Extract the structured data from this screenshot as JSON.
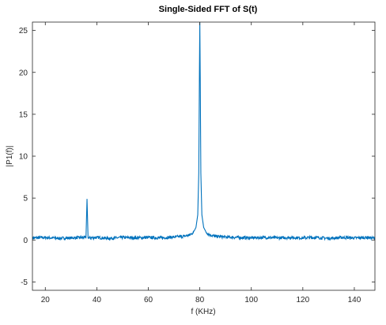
{
  "chart_data": {
    "type": "line",
    "title": "Single-Sided FFT of S(t)",
    "xlabel": "f (KHz)",
    "ylabel": "|P1(f)|",
    "xlim": [
      15,
      148
    ],
    "ylim": [
      -6,
      26
    ],
    "xticks": [
      20,
      40,
      60,
      80,
      100,
      120,
      140
    ],
    "yticks": [
      -5,
      0,
      5,
      10,
      15,
      20,
      25
    ],
    "grid": false,
    "line_color": "#0072BD",
    "noise_floor": 0.25,
    "series": [
      {
        "name": "",
        "points": [
          [
            15,
            0.25
          ],
          [
            20,
            0.3
          ],
          [
            25,
            0.2
          ],
          [
            30,
            0.25
          ],
          [
            35,
            0.3
          ],
          [
            35.8,
            0.3
          ],
          [
            36.2,
            4.9
          ],
          [
            36.6,
            0.3
          ],
          [
            37,
            0.25
          ],
          [
            40,
            0.3
          ],
          [
            45,
            0.2
          ],
          [
            50,
            0.3
          ],
          [
            55,
            0.25
          ],
          [
            60,
            0.3
          ],
          [
            65,
            0.25
          ],
          [
            70,
            0.35
          ],
          [
            74,
            0.45
          ],
          [
            76,
            0.6
          ],
          [
            77.5,
            0.9
          ],
          [
            78.5,
            1.5
          ],
          [
            79.2,
            3.0
          ],
          [
            79.6,
            8.0
          ],
          [
            79.85,
            20.0
          ],
          [
            80.0,
            26.0
          ],
          [
            80.15,
            20.0
          ],
          [
            80.4,
            8.0
          ],
          [
            80.8,
            3.0
          ],
          [
            81.5,
            1.5
          ],
          [
            82.5,
            0.9
          ],
          [
            84,
            0.6
          ],
          [
            86,
            0.45
          ],
          [
            90,
            0.35
          ],
          [
            95,
            0.3
          ],
          [
            100,
            0.25
          ],
          [
            105,
            0.3
          ],
          [
            110,
            0.25
          ],
          [
            115,
            0.3
          ],
          [
            120,
            0.25
          ],
          [
            125,
            0.3
          ],
          [
            130,
            0.2
          ],
          [
            135,
            0.3
          ],
          [
            140,
            0.25
          ],
          [
            145,
            0.3
          ],
          [
            148,
            0.2
          ]
        ]
      }
    ]
  }
}
